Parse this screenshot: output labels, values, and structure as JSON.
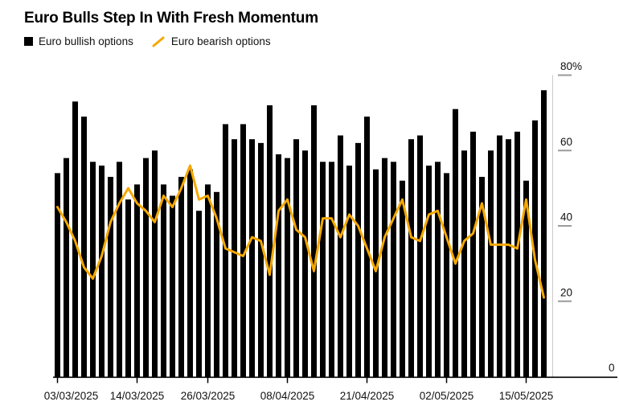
{
  "chart_data": {
    "type": "bar",
    "title": "Euro Bulls Step In With Fresh Momentum",
    "categories": [
      "03/03/2025",
      "04/03/2025",
      "05/03/2025",
      "06/03/2025",
      "07/03/2025",
      "10/03/2025",
      "11/03/2025",
      "12/03/2025",
      "13/03/2025",
      "14/03/2025",
      "17/03/2025",
      "18/03/2025",
      "19/03/2025",
      "20/03/2025",
      "21/03/2025",
      "24/03/2025",
      "25/03/2025",
      "26/03/2025",
      "27/03/2025",
      "28/03/2025",
      "31/03/2025",
      "01/04/2025",
      "02/04/2025",
      "03/04/2025",
      "04/04/2025",
      "07/04/2025",
      "08/04/2025",
      "09/04/2025",
      "10/04/2025",
      "11/04/2025",
      "14/04/2025",
      "15/04/2025",
      "16/04/2025",
      "17/04/2025",
      "18/04/2025",
      "21/04/2025",
      "22/04/2025",
      "23/04/2025",
      "24/04/2025",
      "25/04/2025",
      "28/04/2025",
      "29/04/2025",
      "30/04/2025",
      "01/05/2025",
      "02/05/2025",
      "05/05/2025",
      "06/05/2025",
      "07/05/2025",
      "08/05/2025",
      "09/05/2025",
      "12/05/2025",
      "13/05/2025",
      "14/05/2025",
      "15/05/2025",
      "16/05/2025",
      "19/05/2025"
    ],
    "series": [
      {
        "name": "Euro bullish options",
        "type": "bar",
        "color": "#000000",
        "values": [
          54,
          58,
          73,
          69,
          57,
          56,
          53,
          57,
          47,
          51,
          58,
          60,
          51,
          48,
          53,
          55,
          44,
          51,
          49,
          67,
          63,
          67,
          63,
          62,
          72,
          59,
          58,
          63,
          60,
          72,
          57,
          57,
          64,
          56,
          62,
          69,
          55,
          58,
          57,
          52,
          63,
          64,
          56,
          57,
          54,
          71,
          60,
          65,
          53,
          60,
          64,
          63,
          65,
          52,
          68,
          76
        ]
      },
      {
        "name": "Euro bearish options",
        "type": "line",
        "color": "#F5A800",
        "values": [
          45,
          41,
          36,
          29,
          26,
          32,
          41,
          46,
          50,
          46,
          44,
          41,
          48,
          45,
          50,
          56,
          47,
          48,
          42,
          34,
          33,
          32,
          37,
          36,
          27,
          44,
          47,
          39,
          37,
          28,
          42,
          42,
          37,
          43,
          40,
          34,
          28,
          37,
          42,
          47,
          37,
          36,
          43,
          44,
          37,
          30,
          36,
          38,
          46,
          35,
          35,
          35,
          34,
          47,
          31,
          21
        ]
      }
    ],
    "ylim": [
      0,
      80
    ],
    "y_ticks": [
      0,
      20,
      40,
      60,
      80
    ],
    "y_tick_labels": [
      "0",
      "20",
      "40",
      "60",
      "80%"
    ],
    "x_ticks": [
      {
        "index": 0,
        "label": "03/03/2025"
      },
      {
        "index": 9,
        "label": "14/03/2025"
      },
      {
        "index": 17,
        "label": "26/03/2025"
      },
      {
        "index": 26,
        "label": "08/04/2025"
      },
      {
        "index": 35,
        "label": "21/04/2025"
      },
      {
        "index": 44,
        "label": "02/05/2025"
      },
      {
        "index": 53,
        "label": "15/05/2025"
      }
    ],
    "grid": false,
    "legend_position": "top-left",
    "colors": {
      "axis_line": "#000000",
      "right_axis_line": "#c9c9c9",
      "y_dash": "#9b9b9b",
      "tick_text": "#111111"
    }
  }
}
